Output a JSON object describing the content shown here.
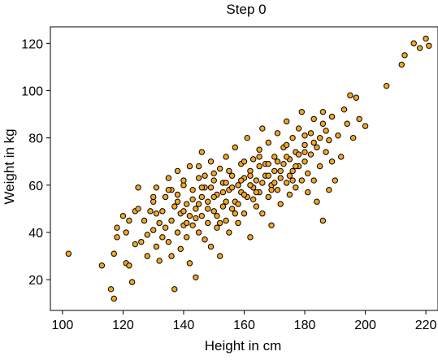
{
  "chart_data": {
    "type": "scatter",
    "title": "Step 0",
    "xlabel": "Height in cm",
    "ylabel": "Weight in kg",
    "xlim": [
      96,
      224
    ],
    "ylim": [
      7,
      127
    ],
    "x_ticks": [
      100,
      120,
      140,
      160,
      180,
      200,
      220
    ],
    "y_ticks": [
      20,
      40,
      60,
      80,
      100,
      120
    ],
    "x_tick_labels": [
      "100",
      "120",
      "140",
      "160",
      "180",
      "200",
      "220"
    ],
    "y_tick_labels": [
      "20",
      "40",
      "60",
      "80",
      "100",
      "120"
    ],
    "marker": {
      "fill": "#f5a623",
      "edge": "#000000",
      "shape": "circle"
    },
    "grid": false,
    "legend": "none",
    "points": [
      [
        102,
        31
      ],
      [
        113,
        26
      ],
      [
        116,
        16
      ],
      [
        117,
        12
      ],
      [
        117,
        31
      ],
      [
        118,
        38
      ],
      [
        118,
        42
      ],
      [
        121,
        40
      ],
      [
        121,
        27
      ],
      [
        122,
        45
      ],
      [
        122,
        26
      ],
      [
        123,
        19
      ],
      [
        124,
        35
      ],
      [
        124,
        49
      ],
      [
        125,
        59
      ],
      [
        126,
        36
      ],
      [
        127,
        45
      ],
      [
        128,
        39
      ],
      [
        128,
        30
      ],
      [
        129,
        49
      ],
      [
        130,
        53
      ],
      [
        130,
        41
      ],
      [
        131,
        59
      ],
      [
        131,
        34
      ],
      [
        132,
        44
      ],
      [
        132,
        28
      ],
      [
        133,
        49
      ],
      [
        133,
        38
      ],
      [
        134,
        55
      ],
      [
        134,
        42
      ],
      [
        135,
        63
      ],
      [
        135,
        36
      ],
      [
        136,
        45
      ],
      [
        136,
        30
      ],
      [
        137,
        51
      ],
      [
        137,
        16
      ],
      [
        138,
        66
      ],
      [
        138,
        40
      ],
      [
        138,
        56
      ],
      [
        139,
        48
      ],
      [
        139,
        33
      ],
      [
        140,
        60
      ],
      [
        140,
        43
      ],
      [
        141,
        52
      ],
      [
        141,
        38
      ],
      [
        142,
        68
      ],
      [
        142,
        47
      ],
      [
        142,
        27
      ],
      [
        143,
        58
      ],
      [
        143,
        43
      ],
      [
        144,
        50
      ],
      [
        144,
        21
      ],
      [
        145,
        63
      ],
      [
        145,
        40
      ],
      [
        146,
        74
      ],
      [
        146,
        55
      ],
      [
        146,
        47
      ],
      [
        147,
        64
      ],
      [
        147,
        37
      ],
      [
        148,
        53
      ],
      [
        148,
        44
      ],
      [
        149,
        70
      ],
      [
        149,
        59
      ],
      [
        149,
        34
      ],
      [
        150,
        49
      ],
      [
        150,
        62
      ],
      [
        151,
        56
      ],
      [
        151,
        42
      ],
      [
        152,
        67
      ],
      [
        152,
        30
      ],
      [
        153,
        51
      ],
      [
        153,
        61
      ],
      [
        154,
        45
      ],
      [
        154,
        72
      ],
      [
        155,
        58
      ],
      [
        155,
        40
      ],
      [
        156,
        64
      ],
      [
        156,
        50
      ],
      [
        157,
        76
      ],
      [
        157,
        53
      ],
      [
        158,
        60
      ],
      [
        158,
        44
      ],
      [
        159,
        69
      ],
      [
        159,
        57
      ],
      [
        160,
        63
      ],
      [
        160,
        48
      ],
      [
        161,
        80
      ],
      [
        161,
        55
      ],
      [
        162,
        66
      ],
      [
        162,
        38
      ],
      [
        163,
        59
      ],
      [
        163,
        71
      ],
      [
        164,
        51
      ],
      [
        164,
        62
      ],
      [
        165,
        75
      ],
      [
        165,
        57
      ],
      [
        166,
        84
      ],
      [
        166,
        48
      ],
      [
        167,
        64
      ],
      [
        167,
        69
      ],
      [
        168,
        55
      ],
      [
        168,
        78
      ],
      [
        169,
        60
      ],
      [
        169,
        43
      ],
      [
        170,
        72
      ],
      [
        170,
        66
      ],
      [
        171,
        58
      ],
      [
        171,
        82
      ],
      [
        172,
        63
      ],
      [
        172,
        52
      ],
      [
        173,
        76
      ],
      [
        173,
        69
      ],
      [
        174,
        61
      ],
      [
        174,
        87
      ],
      [
        175,
        71
      ],
      [
        175,
        56
      ],
      [
        176,
        80
      ],
      [
        176,
        66
      ],
      [
        177,
        74
      ],
      [
        177,
        59
      ],
      [
        178,
        84
      ],
      [
        178,
        68
      ],
      [
        179,
        62
      ],
      [
        179,
        91
      ],
      [
        180,
        77
      ],
      [
        180,
        70
      ],
      [
        181,
        65
      ],
      [
        181,
        57
      ],
      [
        182,
        82
      ],
      [
        182,
        73
      ],
      [
        183,
        88
      ],
      [
        183,
        62
      ],
      [
        184,
        76
      ],
      [
        184,
        53
      ],
      [
        185,
        80
      ],
      [
        185,
        68
      ],
      [
        186,
        91
      ],
      [
        186,
        45
      ],
      [
        187,
        74
      ],
      [
        187,
        83
      ],
      [
        188,
        58
      ],
      [
        188,
        79
      ],
      [
        189,
        70
      ],
      [
        189,
        89
      ],
      [
        190,
        62
      ],
      [
        191,
        81
      ],
      [
        192,
        72
      ],
      [
        193,
        92
      ],
      [
        194,
        86
      ],
      [
        195,
        98
      ],
      [
        196,
        80
      ],
      [
        197,
        97
      ],
      [
        198,
        88
      ],
      [
        200,
        85
      ],
      [
        207,
        102
      ],
      [
        212,
        111
      ],
      [
        213,
        115
      ],
      [
        216,
        120
      ],
      [
        218,
        118
      ],
      [
        220,
        122
      ],
      [
        221,
        119
      ],
      [
        131,
        48
      ],
      [
        136,
        58
      ],
      [
        140,
        49
      ],
      [
        143,
        54
      ],
      [
        147,
        59
      ],
      [
        150,
        55
      ],
      [
        153,
        57
      ],
      [
        156,
        59
      ],
      [
        159,
        62
      ],
      [
        162,
        60
      ],
      [
        165,
        68
      ],
      [
        168,
        64
      ],
      [
        171,
        70
      ],
      [
        174,
        72
      ],
      [
        177,
        68
      ],
      [
        180,
        74
      ],
      [
        183,
        78
      ],
      [
        145,
        52
      ],
      [
        148,
        50
      ],
      [
        151,
        47
      ],
      [
        154,
        53
      ],
      [
        157,
        48
      ],
      [
        160,
        56
      ],
      [
        163,
        54
      ],
      [
        166,
        61
      ],
      [
        169,
        58
      ],
      [
        172,
        66
      ],
      [
        175,
        64
      ],
      [
        178,
        73
      ],
      [
        141,
        44
      ],
      [
        144,
        46
      ],
      [
        152,
        44
      ],
      [
        158,
        52
      ],
      [
        164,
        57
      ],
      [
        170,
        61
      ],
      [
        176,
        62
      ],
      [
        155,
        66
      ],
      [
        160,
        70
      ],
      [
        165,
        72
      ],
      [
        150,
        65
      ],
      [
        145,
        68
      ],
      [
        140,
        62
      ],
      [
        135,
        58
      ],
      [
        130,
        55
      ],
      [
        125,
        50
      ],
      [
        120,
        47
      ],
      [
        138,
        53
      ],
      [
        146,
        59
      ],
      [
        154,
        61
      ],
      [
        162,
        64
      ],
      [
        168,
        69
      ],
      [
        174,
        77
      ],
      [
        180,
        81
      ],
      [
        186,
        86
      ]
    ]
  }
}
